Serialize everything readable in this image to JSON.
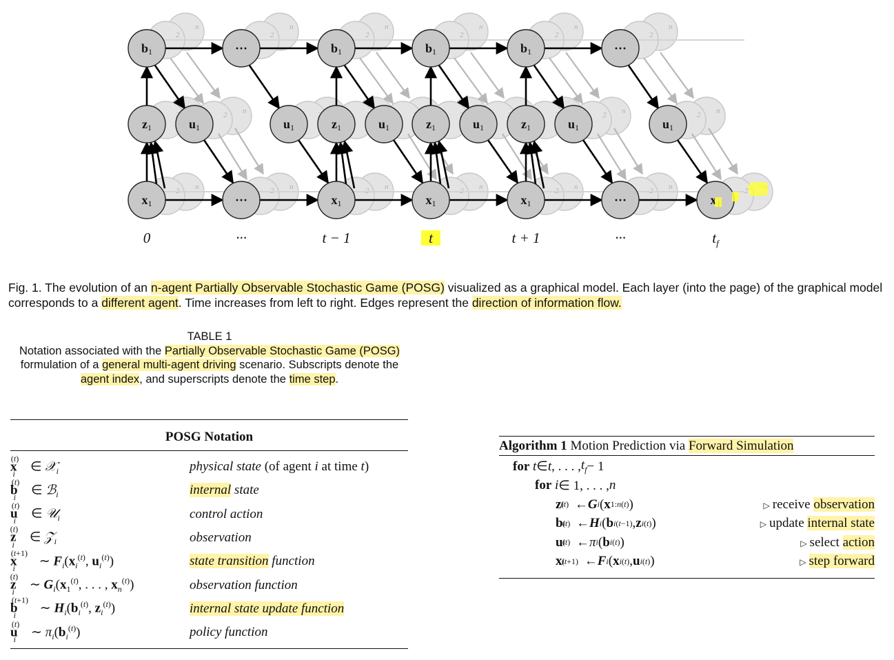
{
  "figure": {
    "node_labels": {
      "belief": "b",
      "obs": "z",
      "control": "u",
      "state": "x",
      "agent_index": "1",
      "ellipsis": "···",
      "layer_labels": [
        "2",
        "n"
      ]
    },
    "time_labels": [
      "0",
      "···",
      "t − 1",
      "t",
      "t + 1",
      "···",
      "t_f"
    ],
    "caption_prefix": "Fig. 1. The evolution of an ",
    "caption_hl1": "n-agent Partially Observable Stochastic Game (POSG)",
    "caption_mid1": " visualized as a graphical model. Each layer (into the page) of the graphical model corresponds to a ",
    "caption_hl2": "different agent",
    "caption_mid2": ". Time increases from left to right. Edges represent the ",
    "caption_hl3": "direction of information flow."
  },
  "table": {
    "label": "TABLE 1",
    "caption_p1": "Notation associated with the ",
    "caption_hl1": "Partially Observable Stochastic Game (POSG)",
    "caption_p2": " formulation of a ",
    "caption_hl2": "general multi-agent driving",
    "caption_p3": " scenario. Subscripts denote the ",
    "caption_hl3": "agent index",
    "caption_p4": ", and superscripts denote the ",
    "caption_hl4": "time step",
    "caption_p5": ".",
    "header": "POSG Notation",
    "rows": [
      {
        "desc_a": "physical state",
        "desc_b": " (of agent ",
        "desc_c": "i",
        "desc_d": " at time ",
        "desc_e": "t",
        "desc_f": ")"
      },
      {
        "desc_hl": "internal",
        "desc_rest": " state"
      },
      {
        "desc": "control action"
      },
      {
        "desc": "observation"
      },
      {
        "desc_hl": "state transition",
        "desc_rest": " function"
      },
      {
        "desc": "observation function"
      },
      {
        "desc_hl": "internal state update function"
      },
      {
        "desc": "policy function"
      }
    ]
  },
  "algorithm": {
    "label": "Algorithm 1",
    "title_p": " Motion Prediction via ",
    "title_hl": "Forward Simulation",
    "for_kw": "for",
    "comments": [
      {
        "p": "receive ",
        "hl": "observation"
      },
      {
        "p": "update ",
        "hl": "internal state"
      },
      {
        "p": "select ",
        "hl": "action"
      },
      {
        "p": "",
        "hl": "step forward"
      }
    ]
  }
}
